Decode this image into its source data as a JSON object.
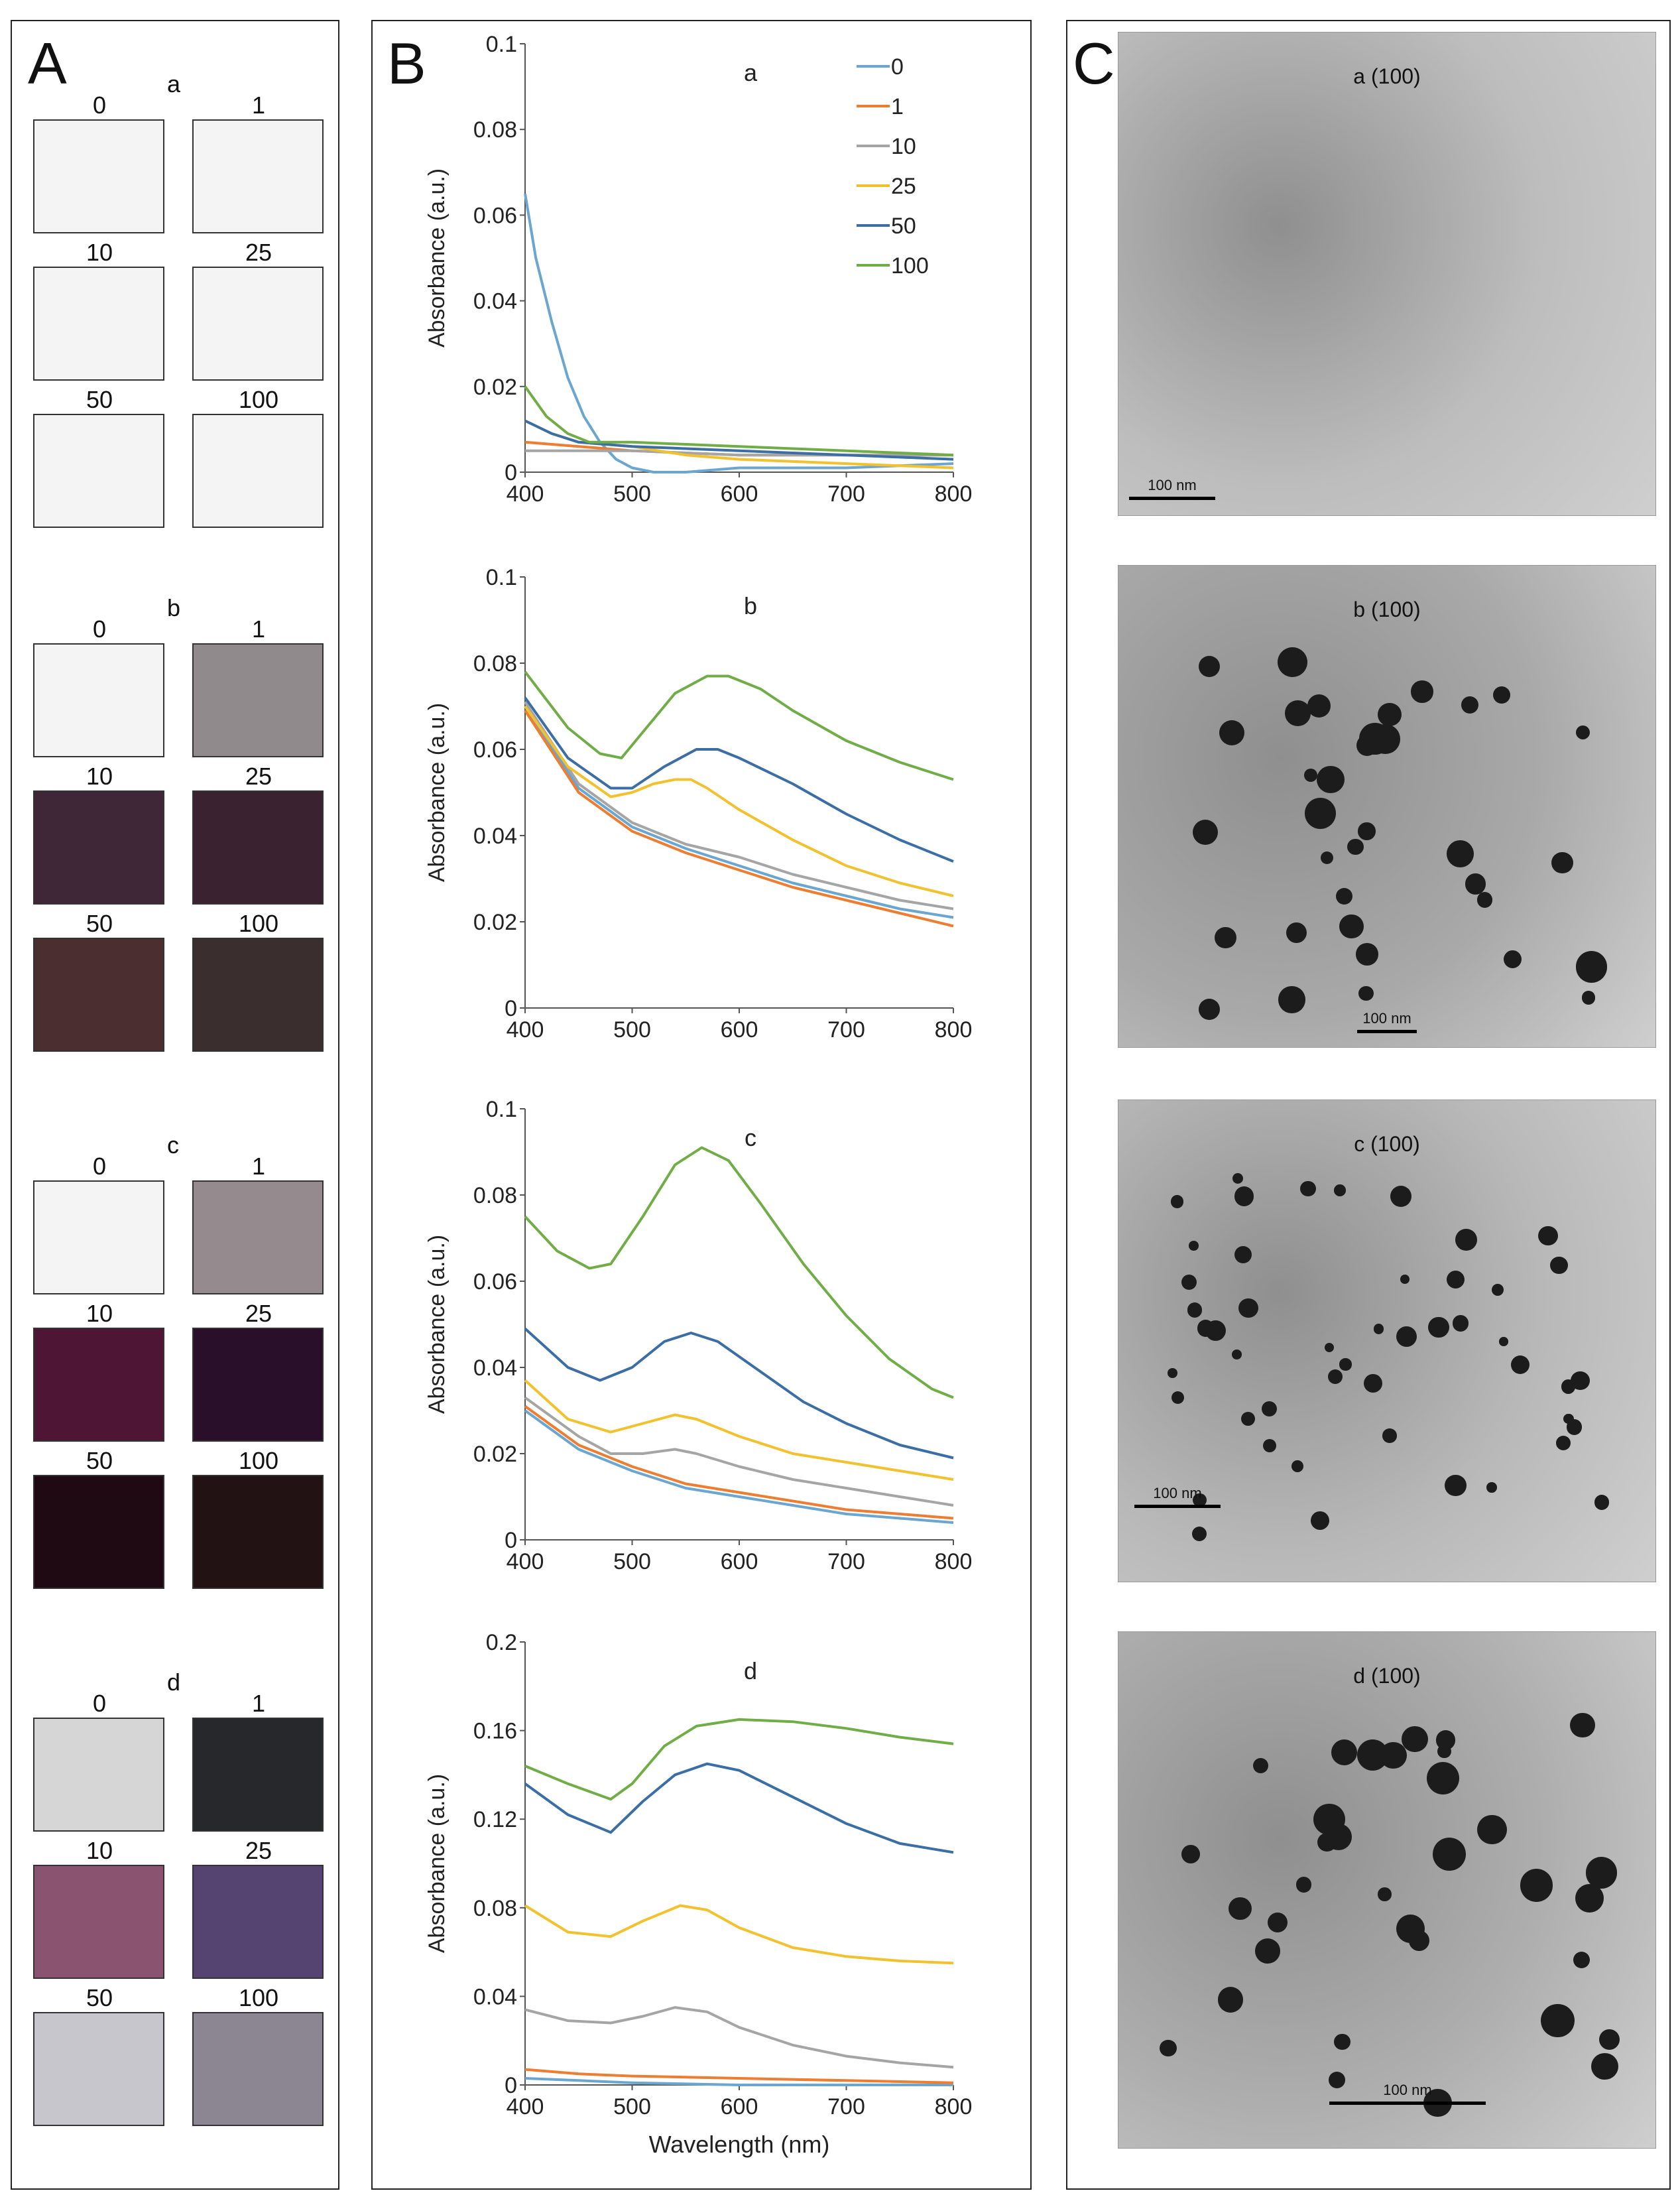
{
  "panel_letters": {
    "A": "A",
    "B": "B",
    "C": "C"
  },
  "swatches": [
    {
      "letter": "a",
      "items": [
        {
          "label": "0",
          "color": "#f4f4f4"
        },
        {
          "label": "1",
          "color": "#f4f4f4"
        },
        {
          "label": "10",
          "color": "#f4f4f4"
        },
        {
          "label": "25",
          "color": "#f4f4f4"
        },
        {
          "label": "50",
          "color": "#f4f4f4"
        },
        {
          "label": "100",
          "color": "#f4f4f4"
        }
      ]
    },
    {
      "letter": "b",
      "items": [
        {
          "label": "0",
          "color": "#f4f4f4"
        },
        {
          "label": "1",
          "color": "#918a8c"
        },
        {
          "label": "10",
          "color": "#3f2738"
        },
        {
          "label": "25",
          "color": "#3a2230"
        },
        {
          "label": "50",
          "color": "#4a2e30"
        },
        {
          "label": "100",
          "color": "#3b2e2f"
        }
      ]
    },
    {
      "letter": "c",
      "items": [
        {
          "label": "0",
          "color": "#f4f4f4"
        },
        {
          "label": "1",
          "color": "#958b8e"
        },
        {
          "label": "10",
          "color": "#4e1535"
        },
        {
          "label": "25",
          "color": "#2a0f2a"
        },
        {
          "label": "50",
          "color": "#1f0912"
        },
        {
          "label": "100",
          "color": "#221214"
        }
      ]
    },
    {
      "letter": "d",
      "items": [
        {
          "label": "0",
          "color": "#d6d6d6"
        },
        {
          "label": "1",
          "color": "#26282b"
        },
        {
          "label": "10",
          "color": "#8a5470"
        },
        {
          "label": "25",
          "color": "#554472"
        },
        {
          "label": "50",
          "color": "#c7c6cc"
        },
        {
          "label": "100",
          "color": "#8c8592"
        }
      ]
    }
  ],
  "chart_data": [
    {
      "type": "line",
      "title": "a",
      "xlabel": "",
      "ylabel": "Absorbance (a.u.)",
      "xlim": [
        400,
        800
      ],
      "ylim": [
        0,
        0.1
      ],
      "xticks": [
        400,
        500,
        600,
        700,
        800
      ],
      "yticks": [
        0,
        0.02,
        0.04,
        0.06,
        0.08,
        0.1
      ],
      "ytick_labels": [
        "0",
        "0.02",
        "0.04",
        "0.06",
        "0.08",
        "0.1"
      ],
      "legend": {
        "placement": "top-right",
        "entries": [
          "0",
          "1",
          "10",
          "25",
          "50",
          "100"
        ]
      },
      "series": [
        {
          "name": "0",
          "color": "#6aa6cf",
          "x": [
            400,
            410,
            425,
            440,
            455,
            470,
            485,
            500,
            520,
            550,
            600,
            700,
            800
          ],
          "y": [
            0.065,
            0.05,
            0.035,
            0.022,
            0.013,
            0.007,
            0.003,
            0.001,
            0,
            0,
            0.001,
            0.001,
            0.002
          ]
        },
        {
          "name": "1",
          "color": "#ed7d31",
          "x": [
            400,
            450,
            500,
            600,
            700,
            800
          ],
          "y": [
            0.007,
            0.006,
            0.005,
            0.004,
            0.004,
            0.004
          ]
        },
        {
          "name": "10",
          "color": "#a5a5a5",
          "x": [
            400,
            450,
            500,
            600,
            700,
            800
          ],
          "y": [
            0.005,
            0.005,
            0.005,
            0.004,
            0.004,
            0.004
          ]
        },
        {
          "name": "25",
          "color": "#f2c12e",
          "x": [
            400,
            425,
            450,
            500,
            550,
            600,
            700,
            800
          ],
          "y": [
            0.012,
            0.009,
            0.007,
            0.006,
            0.004,
            0.003,
            0.002,
            0.001
          ]
        },
        {
          "name": "50",
          "color": "#3a6ea5",
          "x": [
            400,
            425,
            450,
            500,
            600,
            700,
            800
          ],
          "y": [
            0.012,
            0.009,
            0.007,
            0.006,
            0.005,
            0.004,
            0.003
          ]
        },
        {
          "name": "100",
          "color": "#70ad47",
          "x": [
            400,
            420,
            440,
            460,
            500,
            600,
            700,
            800
          ],
          "y": [
            0.02,
            0.013,
            0.009,
            0.007,
            0.007,
            0.006,
            0.005,
            0.004
          ]
        }
      ]
    },
    {
      "type": "line",
      "title": "b",
      "xlabel": "",
      "ylabel": "Absorbance (a.u.)",
      "xlim": [
        400,
        800
      ],
      "ylim": [
        0,
        0.1
      ],
      "xticks": [
        400,
        500,
        600,
        700,
        800
      ],
      "yticks": [
        0,
        0.02,
        0.04,
        0.06,
        0.08,
        0.1
      ],
      "ytick_labels": [
        "0",
        "0.02",
        "0.04",
        "0.06",
        "0.08",
        "0.1"
      ],
      "series": [
        {
          "name": "0",
          "color": "#6aa6cf",
          "x": [
            400,
            450,
            500,
            550,
            600,
            650,
            700,
            750,
            800
          ],
          "y": [
            0.07,
            0.051,
            0.042,
            0.037,
            0.033,
            0.029,
            0.026,
            0.023,
            0.021
          ]
        },
        {
          "name": "1",
          "color": "#ed7d31",
          "x": [
            400,
            450,
            500,
            550,
            600,
            650,
            700,
            750,
            800
          ],
          "y": [
            0.069,
            0.05,
            0.041,
            0.036,
            0.032,
            0.028,
            0.025,
            0.022,
            0.019
          ]
        },
        {
          "name": "10",
          "color": "#a5a5a5",
          "x": [
            400,
            450,
            500,
            550,
            600,
            650,
            700,
            750,
            800
          ],
          "y": [
            0.071,
            0.052,
            0.043,
            0.038,
            0.035,
            0.031,
            0.028,
            0.025,
            0.023
          ]
        },
        {
          "name": "25",
          "color": "#f2c12e",
          "x": [
            400,
            440,
            480,
            500,
            520,
            540,
            555,
            570,
            600,
            650,
            700,
            750,
            800
          ],
          "y": [
            0.07,
            0.056,
            0.049,
            0.05,
            0.052,
            0.053,
            0.053,
            0.051,
            0.046,
            0.039,
            0.033,
            0.029,
            0.026
          ]
        },
        {
          "name": "50",
          "color": "#3a6ea5",
          "x": [
            400,
            440,
            480,
            500,
            530,
            560,
            580,
            600,
            650,
            700,
            750,
            800
          ],
          "y": [
            0.072,
            0.058,
            0.051,
            0.051,
            0.056,
            0.06,
            0.06,
            0.058,
            0.052,
            0.045,
            0.039,
            0.034
          ]
        },
        {
          "name": "100",
          "color": "#70ad47",
          "x": [
            400,
            440,
            470,
            490,
            510,
            540,
            570,
            590,
            620,
            650,
            700,
            750,
            800
          ],
          "y": [
            0.078,
            0.065,
            0.059,
            0.058,
            0.064,
            0.073,
            0.077,
            0.077,
            0.074,
            0.069,
            0.062,
            0.057,
            0.053
          ]
        }
      ]
    },
    {
      "type": "line",
      "title": "c",
      "xlabel": "",
      "ylabel": "Absorbance (a.u.)",
      "xlim": [
        400,
        800
      ],
      "ylim": [
        0,
        0.1
      ],
      "xticks": [
        400,
        500,
        600,
        700,
        800
      ],
      "yticks": [
        0,
        0.02,
        0.04,
        0.06,
        0.08,
        0.1
      ],
      "ytick_labels": [
        "0",
        "0.02",
        "0.04",
        "0.06",
        "0.08",
        "0.1"
      ],
      "series": [
        {
          "name": "0",
          "color": "#6aa6cf",
          "x": [
            400,
            450,
            500,
            550,
            600,
            650,
            700,
            750,
            800
          ],
          "y": [
            0.03,
            0.021,
            0.016,
            0.012,
            0.01,
            0.008,
            0.006,
            0.005,
            0.004
          ]
        },
        {
          "name": "1",
          "color": "#ed7d31",
          "x": [
            400,
            450,
            500,
            550,
            600,
            650,
            700,
            750,
            800
          ],
          "y": [
            0.031,
            0.022,
            0.017,
            0.013,
            0.011,
            0.009,
            0.007,
            0.006,
            0.005
          ]
        },
        {
          "name": "10",
          "color": "#a5a5a5",
          "x": [
            400,
            450,
            480,
            510,
            540,
            560,
            600,
            650,
            700,
            750,
            800
          ],
          "y": [
            0.033,
            0.024,
            0.02,
            0.02,
            0.021,
            0.02,
            0.017,
            0.014,
            0.012,
            0.01,
            0.008
          ]
        },
        {
          "name": "25",
          "color": "#f2c12e",
          "x": [
            400,
            440,
            480,
            510,
            540,
            560,
            600,
            650,
            700,
            750,
            800
          ],
          "y": [
            0.037,
            0.028,
            0.025,
            0.027,
            0.029,
            0.028,
            0.024,
            0.02,
            0.018,
            0.016,
            0.014
          ]
        },
        {
          "name": "50",
          "color": "#3a6ea5",
          "x": [
            400,
            440,
            470,
            500,
            530,
            555,
            580,
            620,
            660,
            700,
            750,
            800
          ],
          "y": [
            0.049,
            0.04,
            0.037,
            0.04,
            0.046,
            0.048,
            0.046,
            0.039,
            0.032,
            0.027,
            0.022,
            0.019
          ]
        },
        {
          "name": "100",
          "color": "#70ad47",
          "x": [
            400,
            430,
            460,
            480,
            510,
            540,
            565,
            590,
            620,
            660,
            700,
            740,
            780,
            800
          ],
          "y": [
            0.075,
            0.067,
            0.063,
            0.064,
            0.075,
            0.087,
            0.091,
            0.088,
            0.078,
            0.064,
            0.052,
            0.042,
            0.035,
            0.033
          ]
        }
      ]
    },
    {
      "type": "line",
      "title": "d",
      "xlabel": "Wavelength (nm)",
      "ylabel": "Absorbance (a.u.)",
      "xlim": [
        400,
        800
      ],
      "ylim": [
        0,
        0.2
      ],
      "xticks": [
        400,
        500,
        600,
        700,
        800
      ],
      "yticks": [
        0,
        0.04,
        0.08,
        0.12,
        0.16,
        0.2
      ],
      "ytick_labels": [
        "0",
        "0.04",
        "0.08",
        "0.12",
        "0.16",
        "0.2"
      ],
      "series": [
        {
          "name": "0",
          "color": "#6aa6cf",
          "x": [
            400,
            450,
            500,
            600,
            700,
            800
          ],
          "y": [
            0.003,
            0.002,
            0.001,
            0,
            0,
            0
          ]
        },
        {
          "name": "1",
          "color": "#ed7d31",
          "x": [
            400,
            450,
            500,
            600,
            700,
            800
          ],
          "y": [
            0.007,
            0.005,
            0.004,
            0.003,
            0.002,
            0.001
          ]
        },
        {
          "name": "10",
          "color": "#a5a5a5",
          "x": [
            400,
            440,
            480,
            510,
            540,
            570,
            600,
            650,
            700,
            750,
            800
          ],
          "y": [
            0.034,
            0.029,
            0.028,
            0.031,
            0.035,
            0.033,
            0.026,
            0.018,
            0.013,
            0.01,
            0.008
          ]
        },
        {
          "name": "25",
          "color": "#f2c12e",
          "x": [
            400,
            440,
            480,
            510,
            545,
            570,
            600,
            650,
            700,
            750,
            800
          ],
          "y": [
            0.081,
            0.069,
            0.067,
            0.074,
            0.081,
            0.079,
            0.071,
            0.062,
            0.058,
            0.056,
            0.055
          ]
        },
        {
          "name": "50",
          "color": "#3a6ea5",
          "x": [
            400,
            440,
            480,
            510,
            540,
            570,
            600,
            650,
            700,
            750,
            800
          ],
          "y": [
            0.136,
            0.122,
            0.114,
            0.128,
            0.14,
            0.145,
            0.142,
            0.13,
            0.118,
            0.109,
            0.105
          ]
        },
        {
          "name": "100",
          "color": "#70ad47",
          "x": [
            400,
            440,
            480,
            500,
            530,
            560,
            600,
            650,
            700,
            750,
            800
          ],
          "y": [
            0.144,
            0.136,
            0.129,
            0.136,
            0.153,
            0.162,
            0.165,
            0.164,
            0.161,
            0.157,
            0.154
          ]
        }
      ]
    }
  ],
  "tem_images": [
    {
      "label": "a (100)",
      "scale": "100 nm",
      "bg": "#bdbdbd"
    },
    {
      "label": "b (100)",
      "scale": "100 nm",
      "bg": "#a9a9a9"
    },
    {
      "label": "c (100)",
      "scale": "100 nm",
      "bg": "#b8b8b8"
    },
    {
      "label": "d (100)",
      "scale": "100 nm",
      "bg": "#aeaeae"
    }
  ]
}
